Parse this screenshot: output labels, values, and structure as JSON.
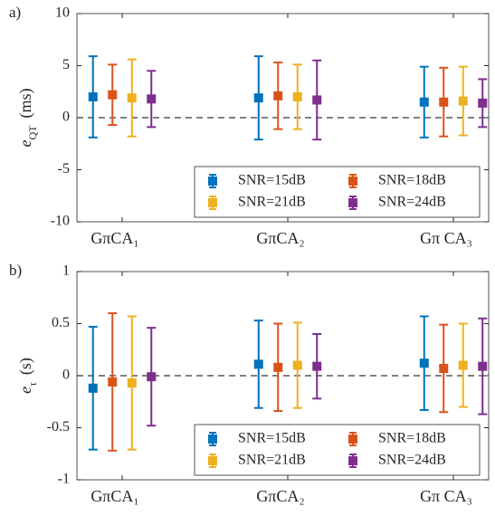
{
  "chart_data": [
    {
      "type": "errorbar",
      "panel_label": "a)",
      "y_label": "e",
      "y_label_sub": "QT",
      "y_label_unit": "(ms)",
      "categories": [
        "GπCA₁",
        "GπCA₂",
        "Gπ CA₃"
      ],
      "ylim": [
        -10,
        10
      ],
      "yticks": [
        -10,
        -5,
        0,
        5,
        10
      ],
      "zero_line": true,
      "legend": "lower right",
      "series": [
        {
          "name": "SNR=15dB",
          "color": "#0072bd",
          "values": [
            2.0,
            1.9,
            1.5
          ],
          "errors": [
            3.9,
            4.0,
            3.4
          ]
        },
        {
          "name": "SNR=18dB",
          "color": "#d95319",
          "values": [
            2.2,
            2.1,
            1.5
          ],
          "errors": [
            2.9,
            3.2,
            3.3
          ]
        },
        {
          "name": "SNR=21dB",
          "color": "#edb120",
          "values": [
            1.9,
            2.0,
            1.6
          ],
          "errors": [
            3.7,
            3.1,
            3.3
          ]
        },
        {
          "name": "SNR=24dB",
          "color": "#7e2f8e",
          "values": [
            1.8,
            1.7,
            1.4
          ],
          "errors": [
            2.7,
            3.8,
            2.3
          ]
        }
      ]
    },
    {
      "type": "errorbar",
      "panel_label": "b)",
      "y_label": "e",
      "y_label_sub": "τ",
      "y_label_unit": "(s)",
      "categories": [
        "GπCA₁",
        "GπCA₂",
        "Gπ CA₃"
      ],
      "ylim": [
        -1,
        1
      ],
      "yticks": [
        -1,
        -0.5,
        0,
        0.5,
        1
      ],
      "zero_line": true,
      "legend": "lower right",
      "series": [
        {
          "name": "SNR=15dB",
          "color": "#0072bd",
          "values": [
            -0.12,
            0.11,
            0.12
          ],
          "errors": [
            0.59,
            0.42,
            0.45
          ]
        },
        {
          "name": "SNR=18dB",
          "color": "#d95319",
          "values": [
            -0.06,
            0.08,
            0.07
          ],
          "errors": [
            0.66,
            0.42,
            0.42
          ]
        },
        {
          "name": "SNR=21dB",
          "color": "#edb120",
          "values": [
            -0.07,
            0.1,
            0.1
          ],
          "errors": [
            0.64,
            0.41,
            0.4
          ]
        },
        {
          "name": "SNR=24dB",
          "color": "#7e2f8e",
          "values": [
            -0.01,
            0.09,
            0.09
          ],
          "errors": [
            0.47,
            0.31,
            0.46
          ]
        }
      ]
    }
  ]
}
